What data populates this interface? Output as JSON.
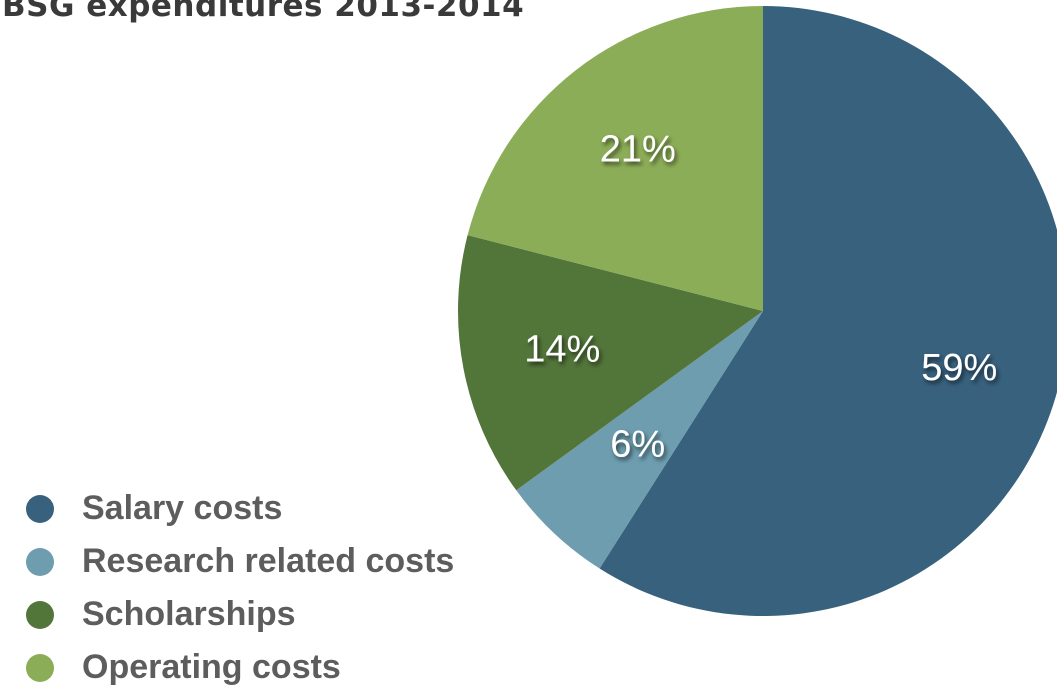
{
  "chart_data": {
    "type": "pie",
    "title": "BSG expenditures 2013-2014",
    "categories": [
      "Salary costs",
      "Research related costs",
      "Scholarships",
      "Operating costs"
    ],
    "values": [
      59,
      6,
      14,
      21
    ],
    "labels": [
      "59%",
      "6%",
      "14%",
      "21%"
    ],
    "colors": [
      "#38617d",
      "#6d9daf",
      "#52753a",
      "#8cad57"
    ],
    "legend_position": "bottom-left",
    "start_angle_deg": 0,
    "direction": "clockwise"
  }
}
